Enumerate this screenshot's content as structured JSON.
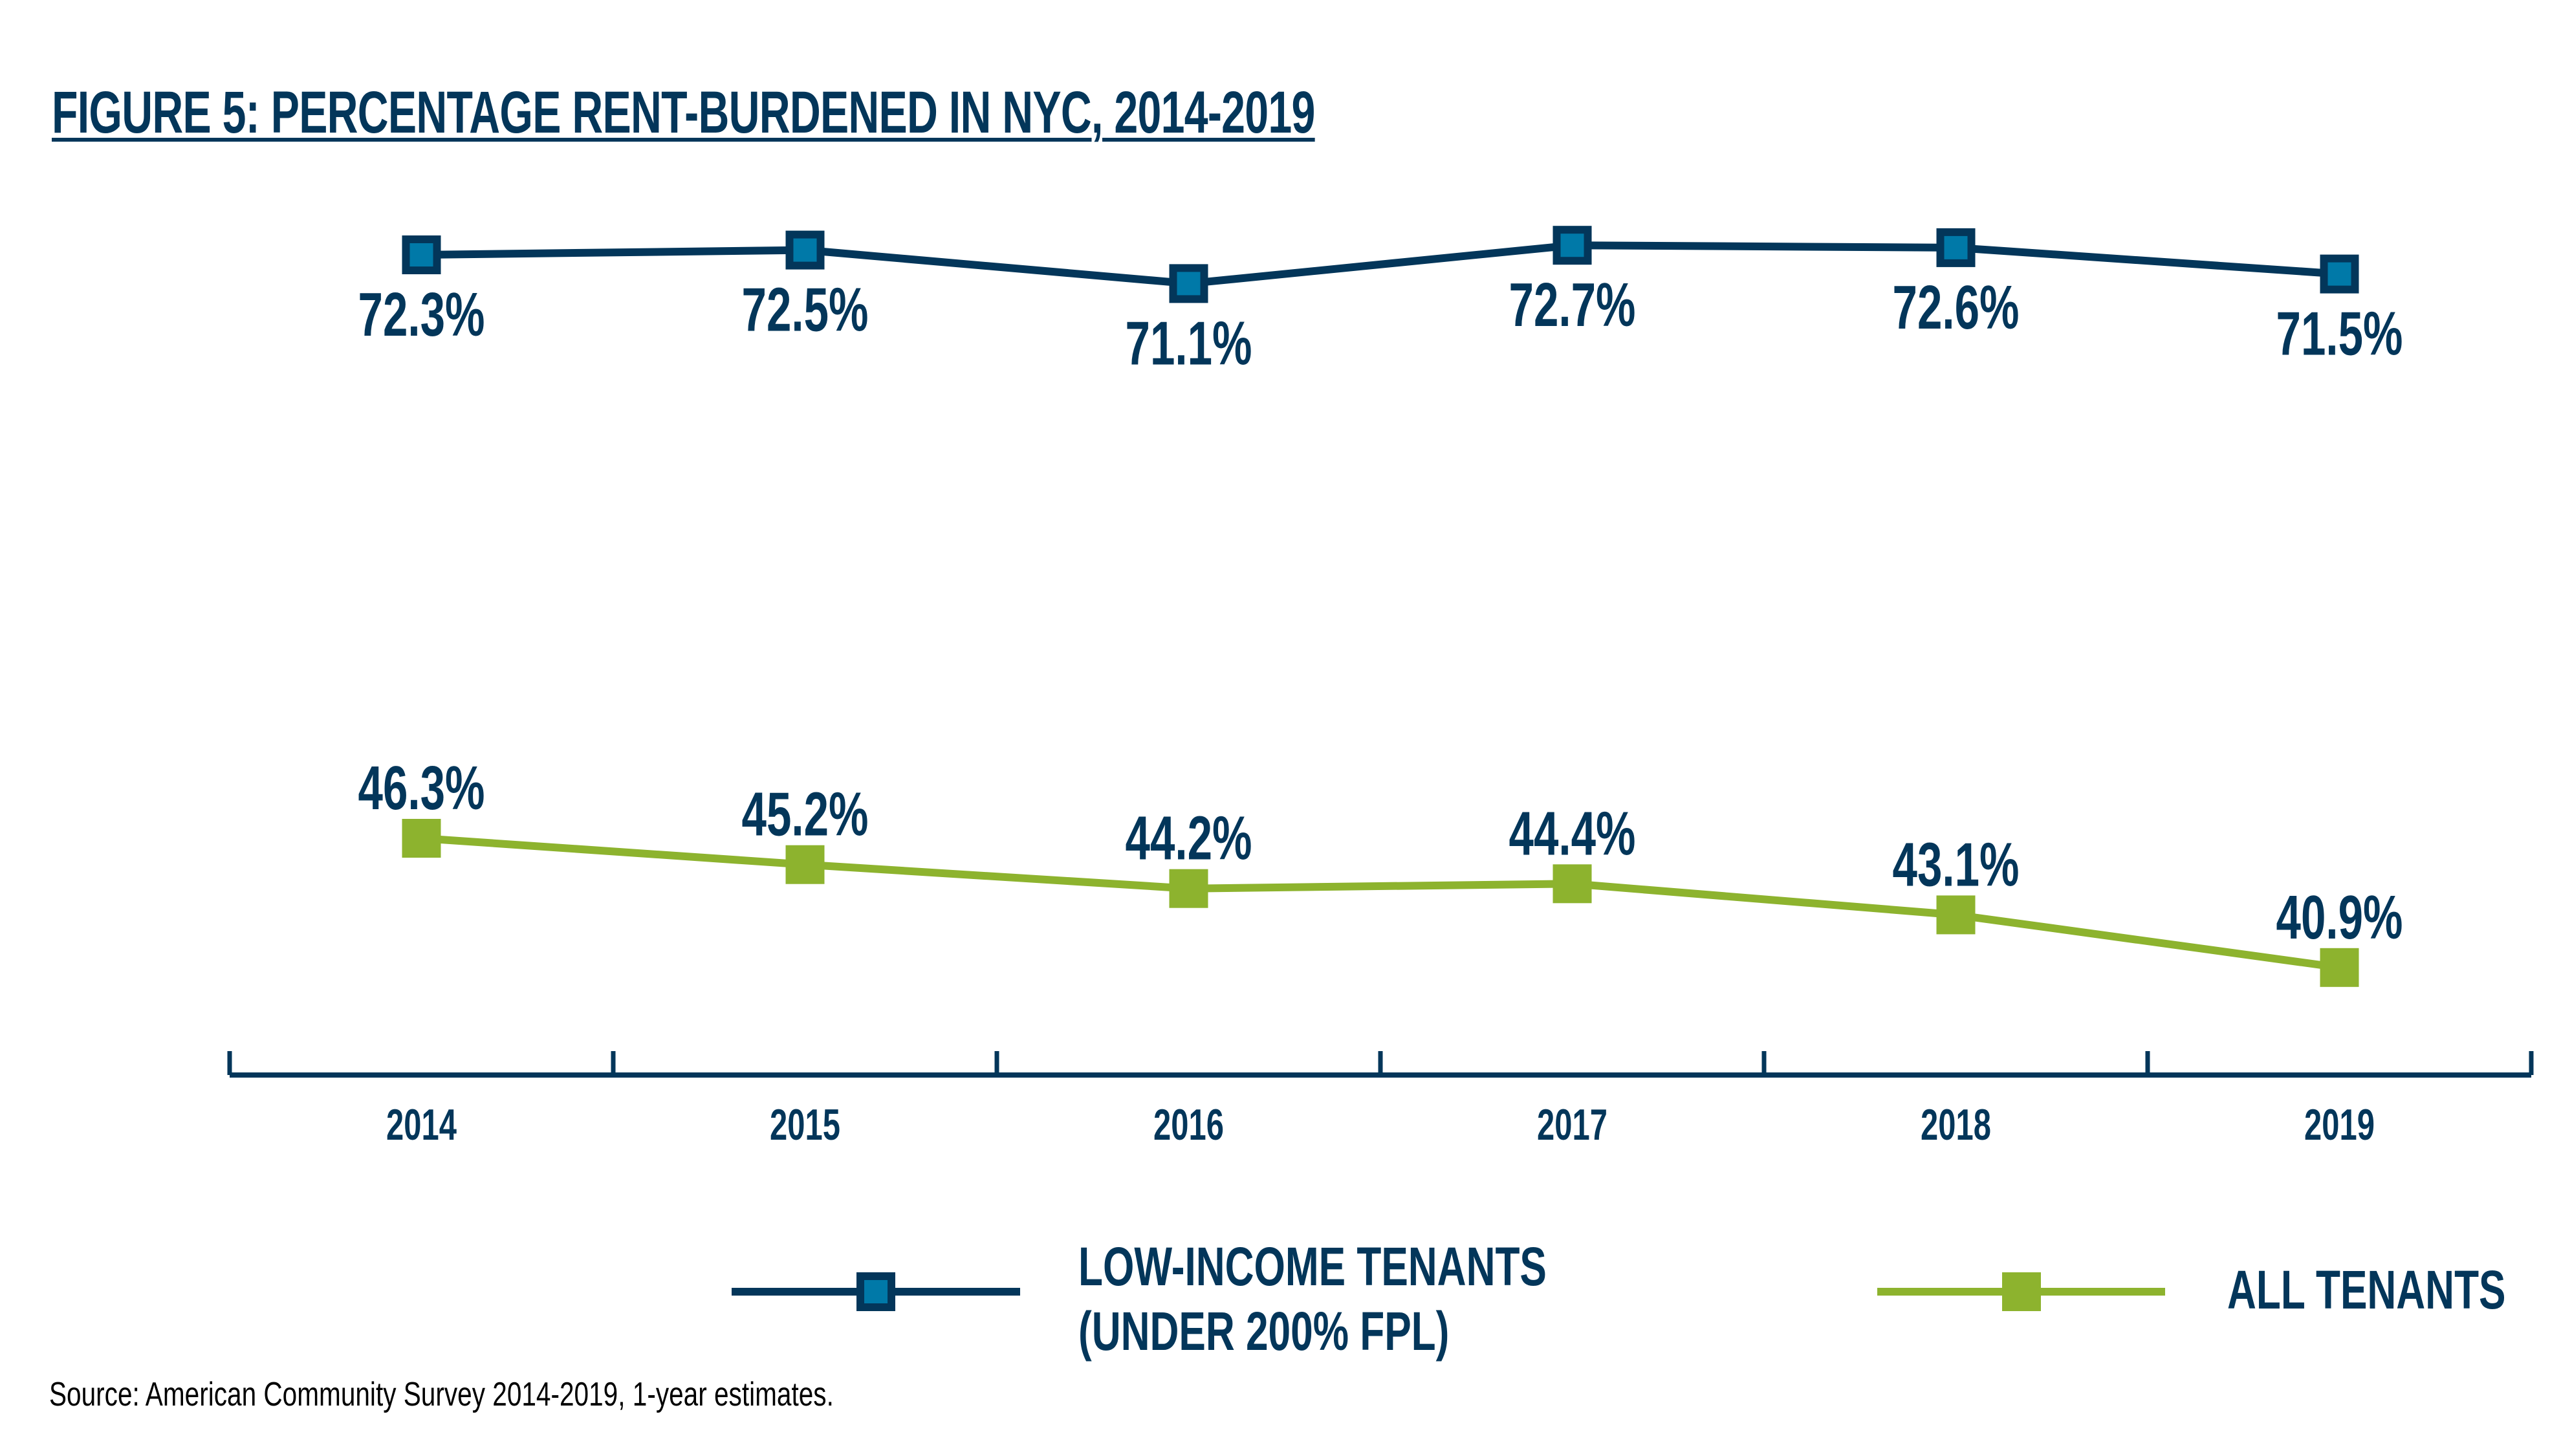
{
  "title": "FIGURE 5: PERCENTAGE RENT-BURDENED IN NYC, 2014-2019",
  "source": "Source: American Community Survey 2014-2019, 1-year estimates.",
  "colors": {
    "navy": "#03365a",
    "marker_fill_blue": "#0079a8",
    "green": "#8db32e",
    "text": "#03365a"
  },
  "legend": [
    {
      "series": "low_income",
      "label_line1": "LOW-INCOME TENANTS",
      "label_line2": "(UNDER 200% FPL)"
    },
    {
      "series": "all",
      "label_line1": "ALL TENANTS",
      "label_line2": ""
    }
  ],
  "chart_data": {
    "type": "line",
    "title": "FIGURE 5: PERCENTAGE RENT-BURDENED IN NYC, 2014-2019",
    "xlabel": "",
    "ylabel": "",
    "categories": [
      "2014",
      "2015",
      "2016",
      "2017",
      "2018",
      "2019"
    ],
    "series": [
      {
        "name": "LOW-INCOME TENANTS (UNDER 200% FPL)",
        "key": "low_income",
        "values": [
          72.3,
          72.5,
          71.1,
          72.7,
          72.6,
          71.5
        ],
        "labels": [
          "72.3%",
          "72.5%",
          "71.1%",
          "72.7%",
          "72.6%",
          "71.5%"
        ],
        "label_position": "below",
        "marker": "square-outlined"
      },
      {
        "name": "ALL TENANTS",
        "key": "all",
        "values": [
          46.3,
          45.2,
          44.2,
          44.4,
          43.1,
          40.9
        ],
        "labels": [
          "46.3%",
          "45.2%",
          "44.2%",
          "44.4%",
          "43.1%",
          "40.9%"
        ],
        "label_position": "above",
        "marker": "square-filled"
      }
    ],
    "y_axis_visible": false,
    "grid": false,
    "legend_position": "bottom"
  }
}
